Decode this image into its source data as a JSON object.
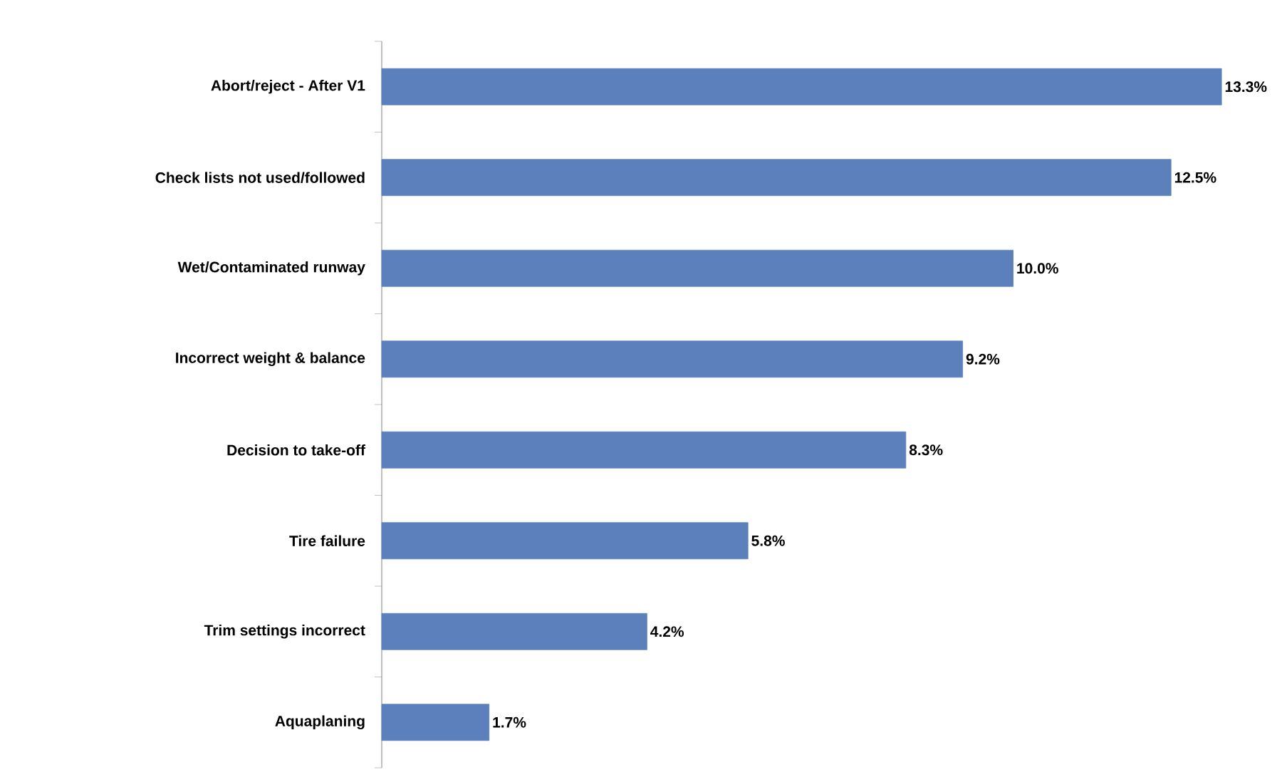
{
  "chart_data": {
    "type": "bar",
    "orientation": "horizontal",
    "categories": [
      "Abort/reject - After V1",
      "Check lists not used/followed",
      "Wet/Contaminated runway",
      "Incorrect weight & balance",
      "Decision to take-off",
      "Tire failure",
      "Trim settings incorrect",
      "Aquaplaning"
    ],
    "values": [
      13.3,
      12.5,
      10.0,
      9.2,
      8.3,
      5.8,
      4.2,
      1.7
    ],
    "value_labels": [
      "13.3%",
      "12.5%",
      "10.0%",
      "9.2%",
      "8.3%",
      "5.8%",
      "4.2%",
      "1.7%"
    ],
    "color": "#5b80bb"
  }
}
